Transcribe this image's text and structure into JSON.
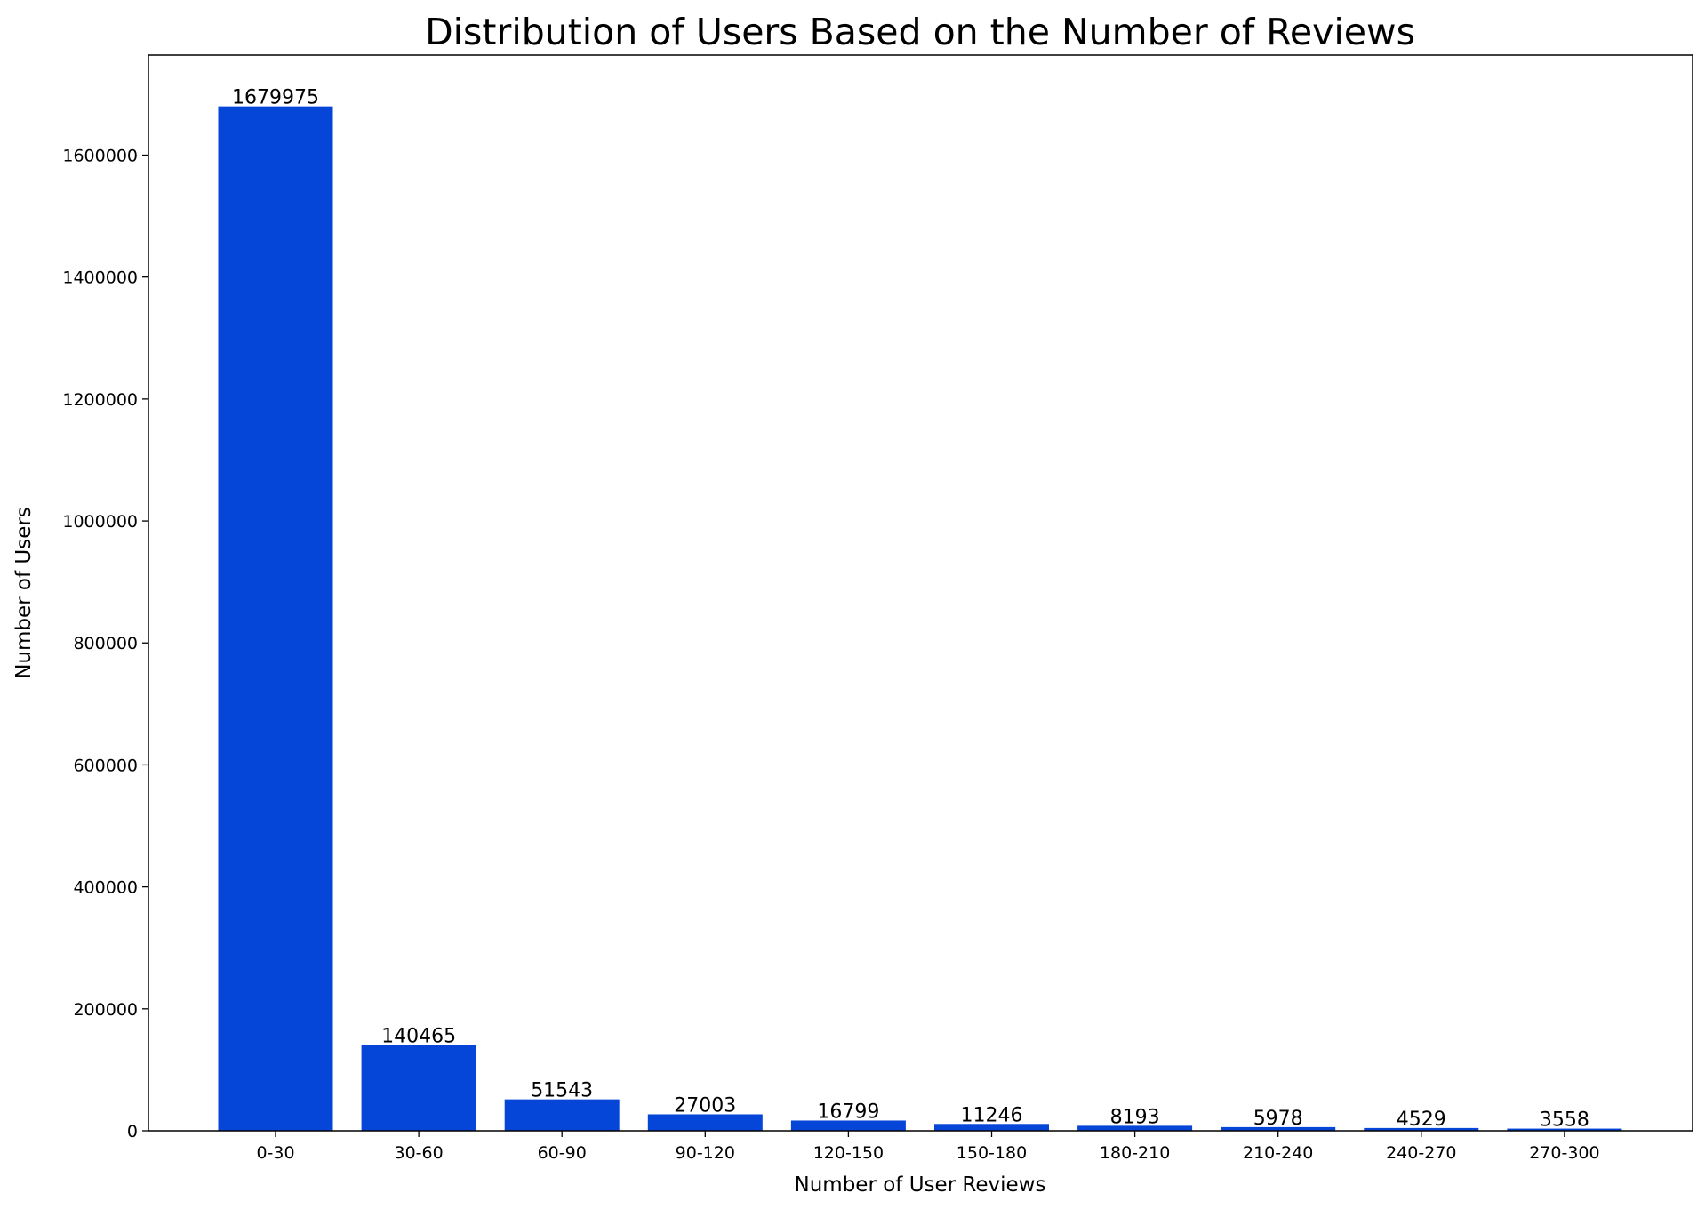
{
  "chart_data": {
    "type": "bar",
    "title": "Distribution of Users Based on the Number of Reviews",
    "xlabel": "Number of User Reviews",
    "ylabel": "Number of Users",
    "categories": [
      "0-30",
      "30-60",
      "60-90",
      "90-120",
      "120-150",
      "150-180",
      "180-210",
      "210-240",
      "240-270",
      "270-300"
    ],
    "values": [
      1679975,
      140465,
      51543,
      27003,
      16799,
      11246,
      8193,
      5978,
      4529,
      3558
    ],
    "data_labels": [
      "1679975",
      "140465",
      "51543",
      "27003",
      "16799",
      "11246",
      "8193",
      "5978",
      "4529",
      "3558"
    ],
    "ylim": [
      0,
      1764000
    ],
    "yticks": [
      0,
      200000,
      400000,
      600000,
      800000,
      1000000,
      1200000,
      1400000,
      1600000
    ],
    "ytick_labels": [
      "0",
      "200000",
      "400000",
      "600000",
      "800000",
      "1000000",
      "1200000",
      "1400000",
      "1600000"
    ],
    "grid": false,
    "legend": "none",
    "bar_color": "#0546d8"
  }
}
